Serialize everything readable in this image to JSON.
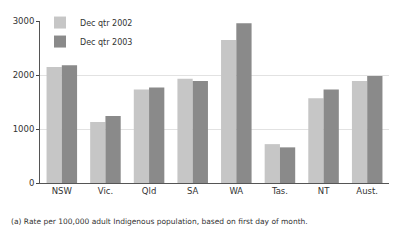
{
  "chart_data": {
    "type": "bar",
    "categories": [
      "NSW",
      "Vic.",
      "Qld",
      "SA",
      "WA",
      "Tas.",
      "NT",
      "Aust."
    ],
    "series": [
      {
        "name": "Dec qtr 2002",
        "color": "#c6c6c6",
        "values": [
          2150,
          1130,
          1730,
          1930,
          2650,
          720,
          1570,
          1890
        ]
      },
      {
        "name": "Dec qtr 2003",
        "color": "#8a8a8a",
        "values": [
          2180,
          1240,
          1770,
          1890,
          2960,
          660,
          1730,
          1980
        ]
      }
    ],
    "ylim": [
      0,
      3000
    ],
    "yticks": [
      0,
      1000,
      2000,
      3000
    ],
    "grid": true,
    "legend": "top-left",
    "annotations": [
      "(a) Rate per 100,000 adult Indigenous population, based on first day of month."
    ]
  }
}
